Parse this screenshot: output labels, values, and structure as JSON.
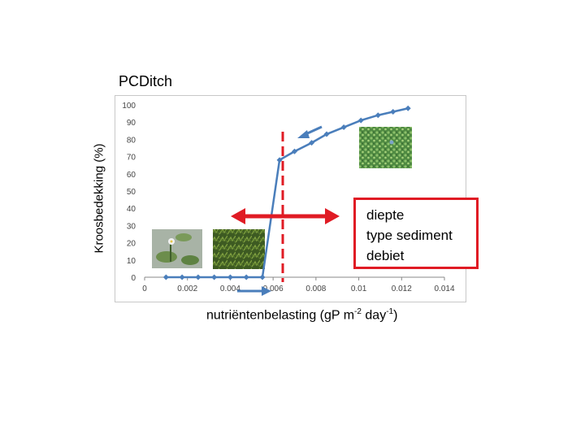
{
  "header": {
    "title": "PCDitch"
  },
  "chart_data": {
    "type": "line",
    "title": "PCDitch",
    "ylabel": "Kroosbedekking (%)",
    "xlabel": {
      "base": "nutriëntenbelasting (gP m",
      "sup1": "-2",
      "mid": " day",
      "sup2": "-1",
      "end": ")"
    },
    "xlim": [
      0,
      0.014
    ],
    "ylim": [
      0,
      100
    ],
    "x_ticks": [
      0,
      0.002,
      0.004,
      0.006,
      0.008,
      0.01,
      0.012,
      0.014
    ],
    "x_tick_labels": [
      "0",
      "0.002",
      "0.004",
      "0.006",
      "0.008",
      "0.01",
      "0.012",
      "0.014"
    ],
    "y_ticks": [
      0,
      10,
      20,
      30,
      40,
      50,
      60,
      70,
      80,
      90,
      100
    ],
    "y_tick_labels": [
      "0",
      "10",
      "20",
      "30",
      "40",
      "50",
      "60",
      "70",
      "80",
      "90",
      "100"
    ],
    "grid": false,
    "series": [
      {
        "color": "#4a7ebb",
        "x": [
          0.001,
          0.00175,
          0.0025,
          0.00325,
          0.004,
          0.00475,
          0.0055,
          0.0063,
          0.007,
          0.0078,
          0.0085,
          0.0093,
          0.0101,
          0.0109,
          0.0116,
          0.0123
        ],
        "y": [
          0,
          0,
          0,
          0,
          0,
          0,
          0,
          68,
          73,
          78,
          83,
          87,
          91,
          94,
          96,
          98
        ]
      }
    ],
    "threshold_x": 0.00645,
    "threshold_color": "#e01b24",
    "arrow_color": "#4a7ebb",
    "double_arrow_color": "#e01b24"
  },
  "note": {
    "lines": [
      "diepte",
      "type sediment",
      "debiet"
    ],
    "border_color": "#e01b24"
  },
  "photos": [
    {
      "name": "duckweed-photo",
      "description_icon": "duckweed-cover-photo"
    },
    {
      "name": "waterlily-photo",
      "description_icon": "water-plant-photo"
    },
    {
      "name": "submerged-plant-photo",
      "description_icon": "submerged-weed-photo"
    }
  ]
}
